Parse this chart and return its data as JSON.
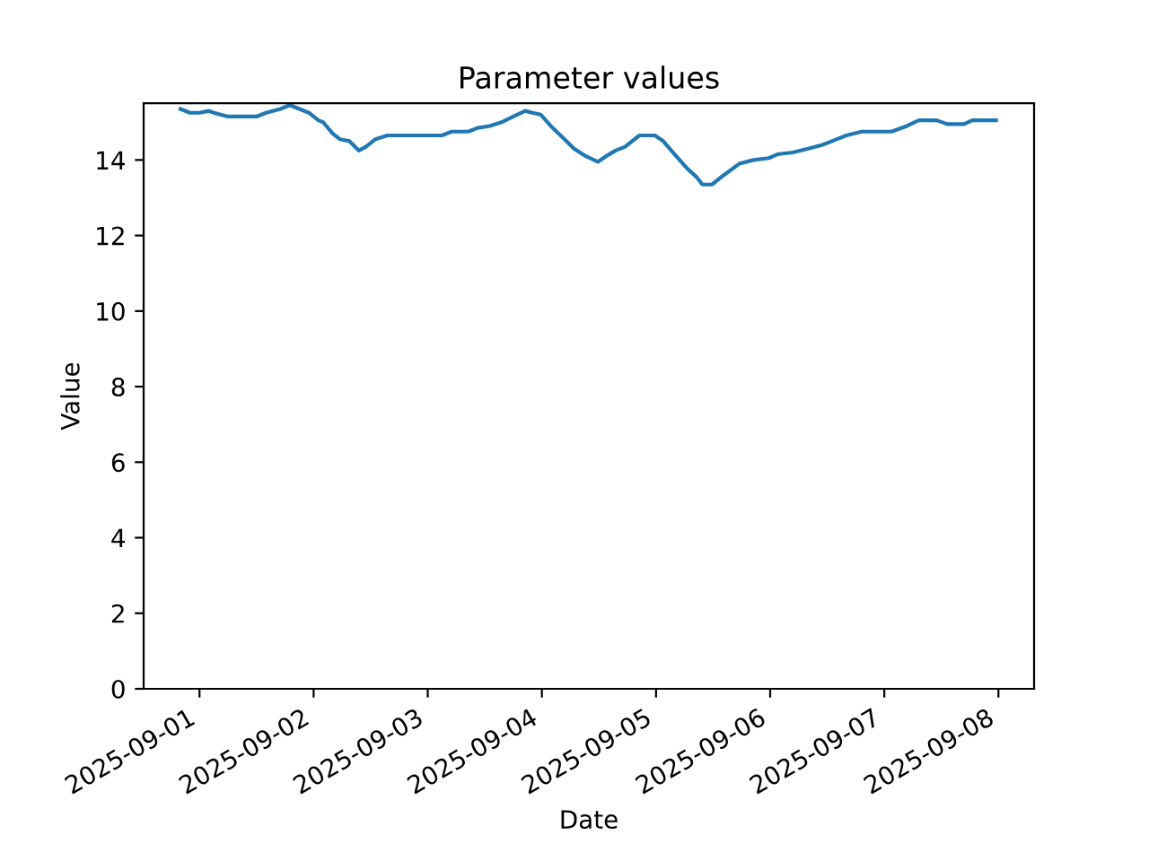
{
  "chart_data": {
    "type": "line",
    "title": "Parameter values",
    "xlabel": "Date",
    "ylabel": "Value",
    "x": [
      "2025-08-31T20:00",
      "2025-08-31T22:00",
      "2025-09-01T00:00",
      "2025-09-01T02:00",
      "2025-09-01T03:00",
      "2025-09-01T06:00",
      "2025-09-01T12:00",
      "2025-09-01T14:00",
      "2025-09-01T17:00",
      "2025-09-01T19:00",
      "2025-09-01T21:00",
      "2025-09-01T23:00",
      "2025-09-02T01:00",
      "2025-09-02T02:00",
      "2025-09-02T04:00",
      "2025-09-02T05:30",
      "2025-09-02T07:30",
      "2025-09-02T09:30",
      "2025-09-02T11:00",
      "2025-09-02T13:00",
      "2025-09-02T15:30",
      "2025-09-03T03:00",
      "2025-09-03T05:00",
      "2025-09-03T08:30",
      "2025-09-03T10:30",
      "2025-09-03T13:00",
      "2025-09-03T15:30",
      "2025-09-03T18:00",
      "2025-09-03T20:30",
      "2025-09-03T22:00",
      "2025-09-03T23:45",
      "2025-09-04T02:15",
      "2025-09-04T04:45",
      "2025-09-04T06:45",
      "2025-09-04T09:15",
      "2025-09-04T11:45",
      "2025-09-04T13:30",
      "2025-09-04T15:30",
      "2025-09-04T17:30",
      "2025-09-04T20:30",
      "2025-09-04T23:45",
      "2025-09-05T01:30",
      "2025-09-05T04:15",
      "2025-09-05T06:45",
      "2025-09-05T08:30",
      "2025-09-05T09:45",
      "2025-09-05T11:45",
      "2025-09-05T14:15",
      "2025-09-05T17:30",
      "2025-09-05T20:30",
      "2025-09-05T23:45",
      "2025-09-06T01:30",
      "2025-09-06T04:45",
      "2025-09-06T08:00",
      "2025-09-06T11:00",
      "2025-09-06T13:00",
      "2025-09-06T16:00",
      "2025-09-06T19:15",
      "2025-09-07T01:30",
      "2025-09-07T04:45",
      "2025-09-07T07:15",
      "2025-09-07T11:00",
      "2025-09-07T13:15",
      "2025-09-07T16:45",
      "2025-09-07T18:30",
      "2025-09-07T23:30"
    ],
    "series": [
      {
        "color": "#1f77b4",
        "values": [
          15.35,
          15.25,
          15.25,
          15.3,
          15.25,
          15.15,
          15.15,
          15.25,
          15.35,
          15.45,
          15.35,
          15.25,
          15.05,
          15.0,
          14.7,
          14.55,
          14.5,
          14.25,
          14.35,
          14.55,
          14.65,
          14.65,
          14.75,
          14.75,
          14.85,
          14.9,
          15.0,
          15.15,
          15.3,
          15.25,
          15.2,
          14.85,
          14.55,
          14.3,
          14.1,
          13.95,
          14.1,
          14.25,
          14.35,
          14.65,
          14.65,
          14.5,
          14.1,
          13.75,
          13.55,
          13.35,
          13.35,
          13.6,
          13.9,
          14.0,
          14.05,
          14.15,
          14.2,
          14.3,
          14.4,
          14.5,
          14.65,
          14.75,
          14.75,
          14.9,
          15.05,
          15.05,
          14.95,
          14.95,
          15.05,
          15.05
        ]
      }
    ],
    "xlim": [
      "2025-08-31T12:15",
      "2025-09-08T07:30"
    ],
    "xticks": [
      {
        "value": "2025-09-01",
        "label": "2025-09-01"
      },
      {
        "value": "2025-09-02",
        "label": "2025-09-02"
      },
      {
        "value": "2025-09-03",
        "label": "2025-09-03"
      },
      {
        "value": "2025-09-04",
        "label": "2025-09-04"
      },
      {
        "value": "2025-09-05",
        "label": "2025-09-05"
      },
      {
        "value": "2025-09-06",
        "label": "2025-09-06"
      },
      {
        "value": "2025-09-07",
        "label": "2025-09-07"
      },
      {
        "value": "2025-09-08",
        "label": "2025-09-08"
      }
    ],
    "ylim": [
      0,
      15.5
    ],
    "yticks": [
      0,
      2,
      4,
      6,
      8,
      10,
      12,
      14
    ],
    "grid": false,
    "legend": false
  }
}
